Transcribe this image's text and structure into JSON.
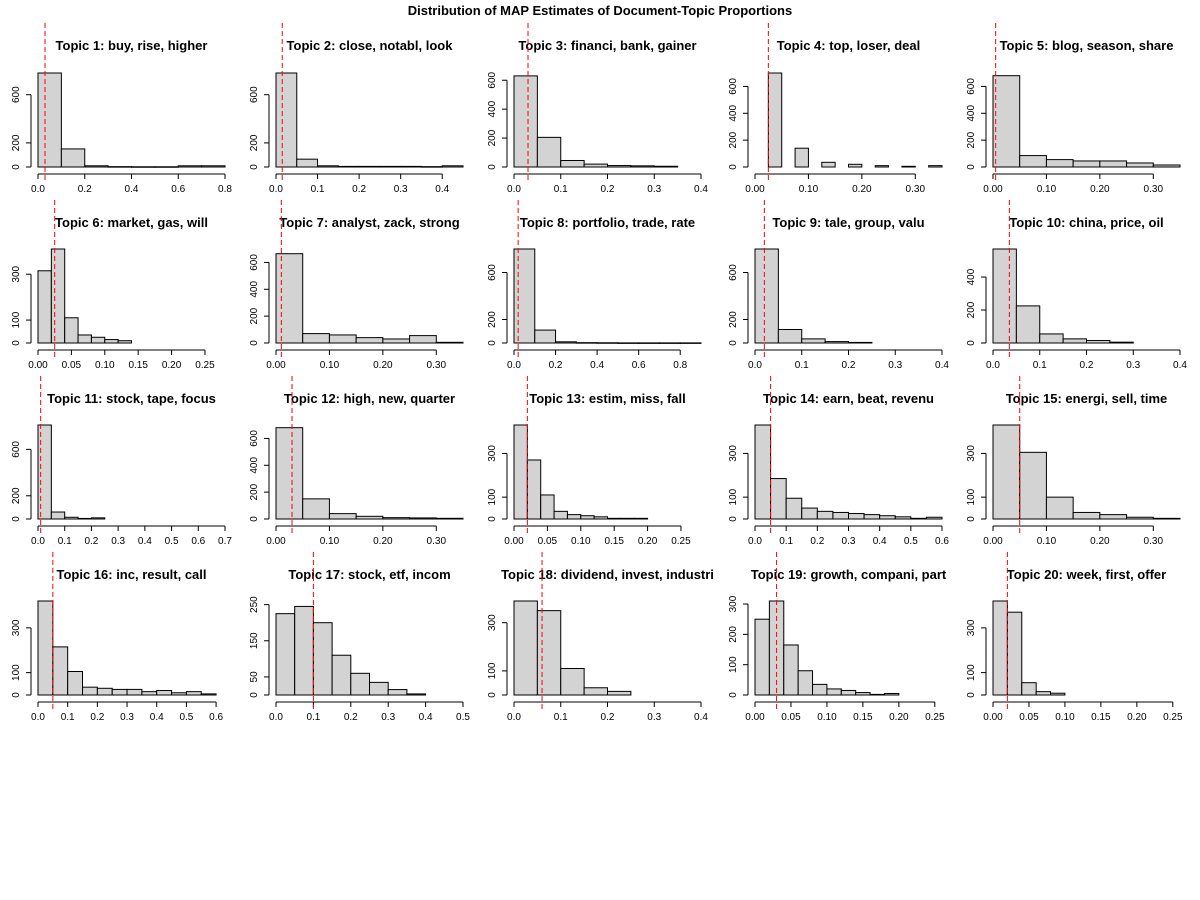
{
  "figure": {
    "title": "Distribution of MAP Estimates of Document-Topic Proportions"
  },
  "colors": {
    "bar_fill": "#d3d3d3",
    "bar_stroke": "#000000",
    "mean_line": "#ff0000"
  },
  "chart_data": [
    {
      "type": "bar",
      "title": "Topic 1: buy, rise, higher",
      "bin_edges": [
        0,
        0.1,
        0.2,
        0.3,
        0.4,
        0.5,
        0.6,
        0.7,
        0.8
      ],
      "counts": [
        780,
        150,
        10,
        3,
        2,
        2,
        10,
        10
      ],
      "xlim": [
        0,
        0.8
      ],
      "xticks": [
        0,
        0.2,
        0.4,
        0.6,
        0.8
      ],
      "xtick_labels": [
        "0.0",
        "0.2",
        "0.4",
        "0.6",
        "0.8"
      ],
      "ylim": [
        0,
        780
      ],
      "yticks": [
        0,
        200,
        600
      ],
      "mean": 0.03
    },
    {
      "type": "bar",
      "title": "Topic 2: close, notabl, look",
      "bin_edges": [
        0,
        0.05,
        0.1,
        0.15,
        0.2,
        0.25,
        0.3,
        0.35,
        0.4,
        0.45
      ],
      "counts": [
        780,
        65,
        10,
        5,
        5,
        5,
        5,
        3,
        10
      ],
      "xlim": [
        0,
        0.45
      ],
      "xticks": [
        0,
        0.1,
        0.2,
        0.3,
        0.4
      ],
      "xtick_labels": [
        "0.0",
        "0.1",
        "0.2",
        "0.3",
        "0.4"
      ],
      "ylim": [
        0,
        780
      ],
      "yticks": [
        0,
        200,
        600
      ],
      "mean": 0.015
    },
    {
      "type": "bar",
      "title": "Topic 3: financi, bank, gainer",
      "bin_edges": [
        0,
        0.05,
        0.1,
        0.15,
        0.2,
        0.25,
        0.3,
        0.35
      ],
      "counts": [
        630,
        205,
        45,
        20,
        10,
        8,
        5
      ],
      "xlim": [
        0,
        0.4
      ],
      "xticks": [
        0,
        0.1,
        0.2,
        0.3,
        0.4
      ],
      "xtick_labels": [
        "0.0",
        "0.1",
        "0.2",
        "0.3",
        "0.4"
      ],
      "ylim": [
        0,
        650
      ],
      "yticks": [
        0,
        200,
        400,
        600
      ],
      "mean": 0.03
    },
    {
      "type": "bar",
      "title": "Topic 4: top, loser, deal",
      "bin_edges": [
        0,
        0.025,
        0.05,
        0.075,
        0.1,
        0.125,
        0.15,
        0.175,
        0.2,
        0.225,
        0.25,
        0.275,
        0.3,
        0.325,
        0.35
      ],
      "counts": [
        0,
        700,
        0,
        140,
        0,
        35,
        0,
        20,
        0,
        10,
        0,
        5,
        0,
        10
      ],
      "xlim": [
        0,
        0.35
      ],
      "xticks": [
        0,
        0.1,
        0.2,
        0.3
      ],
      "xtick_labels": [
        "0.00",
        "0.10",
        "0.20",
        "0.30"
      ],
      "ylim": [
        0,
        700
      ],
      "yticks": [
        0,
        200,
        400,
        600
      ],
      "mean": 0.025
    },
    {
      "type": "bar",
      "title": "Topic 5: blog, season, share",
      "bin_edges": [
        0,
        0.05,
        0.1,
        0.15,
        0.2,
        0.25,
        0.3,
        0.35
      ],
      "counts": [
        680,
        85,
        55,
        45,
        45,
        30,
        15
      ],
      "xlim": [
        0,
        0.35
      ],
      "xticks": [
        0,
        0.1,
        0.2,
        0.3
      ],
      "xtick_labels": [
        "0.00",
        "0.10",
        "0.20",
        "0.30"
      ],
      "ylim": [
        0,
        700
      ],
      "yticks": [
        0,
        200,
        400,
        600
      ],
      "mean": 0.005
    },
    {
      "type": "bar",
      "title": "Topic 6: market, gas, will",
      "bin_edges": [
        0,
        0.02,
        0.04,
        0.06,
        0.08,
        0.1,
        0.12,
        0.14
      ],
      "counts": [
        315,
        410,
        110,
        35,
        25,
        15,
        10
      ],
      "xlim": [
        0,
        0.28
      ],
      "xticks": [
        0,
        0.05,
        0.1,
        0.15,
        0.2,
        0.25
      ],
      "xtick_labels": [
        "0.00",
        "0.05",
        "0.10",
        "0.15",
        "0.20",
        "0.25"
      ],
      "ylim": [
        0,
        410
      ],
      "yticks": [
        0,
        100,
        300
      ],
      "mean": 0.025
    },
    {
      "type": "bar",
      "title": "Topic 7: analyst, zack, strong",
      "bin_edges": [
        0,
        0.05,
        0.1,
        0.15,
        0.2,
        0.25,
        0.3,
        0.35
      ],
      "counts": [
        665,
        70,
        60,
        40,
        30,
        55,
        5
      ],
      "xlim": [
        0,
        0.35
      ],
      "xticks": [
        0,
        0.1,
        0.2,
        0.3
      ],
      "xtick_labels": [
        "0.00",
        "0.10",
        "0.20",
        "0.30"
      ],
      "ylim": [
        0,
        700
      ],
      "yticks": [
        0,
        200,
        400,
        600
      ],
      "mean": 0.01
    },
    {
      "type": "bar",
      "title": "Topic 8: portfolio, trade, rate",
      "bin_edges": [
        0,
        0.1,
        0.2,
        0.3,
        0.4,
        0.5,
        0.6,
        0.7,
        0.8,
        0.9
      ],
      "counts": [
        800,
        110,
        10,
        3,
        2,
        1,
        1,
        1,
        1
      ],
      "xlim": [
        0,
        0.9
      ],
      "xticks": [
        0,
        0.2,
        0.4,
        0.6,
        0.8
      ],
      "xtick_labels": [
        "0.0",
        "0.2",
        "0.4",
        "0.6",
        "0.8"
      ],
      "ylim": [
        0,
        800
      ],
      "yticks": [
        0,
        200,
        600
      ],
      "mean": 0.02
    },
    {
      "type": "bar",
      "title": "Topic 9: tale, group, valu",
      "bin_edges": [
        0,
        0.05,
        0.1,
        0.15,
        0.2,
        0.25
      ],
      "counts": [
        800,
        115,
        35,
        12,
        5
      ],
      "xlim": [
        0,
        0.4
      ],
      "xticks": [
        0,
        0.1,
        0.2,
        0.3,
        0.4
      ],
      "xtick_labels": [
        "0.0",
        "0.1",
        "0.2",
        "0.3",
        "0.4"
      ],
      "ylim": [
        0,
        800
      ],
      "yticks": [
        0,
        200,
        600
      ],
      "mean": 0.02
    },
    {
      "type": "bar",
      "title": "Topic 10: china, price, oil",
      "bin_edges": [
        0,
        0.05,
        0.1,
        0.15,
        0.2,
        0.25,
        0.3
      ],
      "counts": [
        570,
        225,
        55,
        25,
        15,
        5
      ],
      "xlim": [
        0,
        0.4
      ],
      "xticks": [
        0,
        0.1,
        0.2,
        0.3,
        0.4
      ],
      "xtick_labels": [
        "0.0",
        "0.1",
        "0.2",
        "0.3",
        "0.4"
      ],
      "ylim": [
        0,
        570
      ],
      "yticks": [
        0,
        200,
        400
      ],
      "mean": 0.035
    },
    {
      "type": "bar",
      "title": "Topic 11: stock, tape, focus",
      "bin_edges": [
        0,
        0.05,
        0.1,
        0.15,
        0.2,
        0.25
      ],
      "counts": [
        810,
        60,
        15,
        5,
        10
      ],
      "xlim": [
        0,
        0.7
      ],
      "xticks": [
        0,
        0.1,
        0.2,
        0.3,
        0.4,
        0.5,
        0.6,
        0.7
      ],
      "xtick_labels": [
        "0.0",
        "0.1",
        "0.2",
        "0.3",
        "0.4",
        "0.5",
        "0.6",
        "0.7"
      ],
      "ylim": [
        0,
        810
      ],
      "yticks": [
        0,
        200,
        600
      ],
      "mean": 0.01
    },
    {
      "type": "bar",
      "title": "Topic 12: high, new, quarter",
      "bin_edges": [
        0,
        0.05,
        0.1,
        0.15,
        0.2,
        0.25,
        0.3,
        0.35
      ],
      "counts": [
        680,
        150,
        40,
        20,
        10,
        8,
        5
      ],
      "xlim": [
        0,
        0.35
      ],
      "xticks": [
        0,
        0.1,
        0.2,
        0.3
      ],
      "xtick_labels": [
        "0.00",
        "0.10",
        "0.20",
        "0.30"
      ],
      "ylim": [
        0,
        700
      ],
      "yticks": [
        0,
        200,
        400,
        600
      ],
      "mean": 0.03
    },
    {
      "type": "bar",
      "title": "Topic 13: estim, miss, fall",
      "bin_edges": [
        0,
        0.02,
        0.04,
        0.06,
        0.08,
        0.1,
        0.12,
        0.14,
        0.16,
        0.18,
        0.2
      ],
      "counts": [
        430,
        270,
        110,
        35,
        20,
        15,
        10,
        3,
        3,
        3
      ],
      "xlim": [
        0,
        0.28
      ],
      "xticks": [
        0,
        0.05,
        0.1,
        0.15,
        0.2,
        0.25
      ],
      "xtick_labels": [
        "0.00",
        "0.05",
        "0.10",
        "0.15",
        "0.20",
        "0.25"
      ],
      "ylim": [
        0,
        430
      ],
      "yticks": [
        0,
        100,
        300
      ],
      "mean": 0.02
    },
    {
      "type": "bar",
      "title": "Topic 14: earn, beat, revenu",
      "bin_edges": [
        0,
        0.05,
        0.1,
        0.15,
        0.2,
        0.25,
        0.3,
        0.35,
        0.4,
        0.45,
        0.5,
        0.55,
        0.6
      ],
      "counts": [
        430,
        185,
        95,
        50,
        35,
        30,
        25,
        20,
        15,
        10,
        3,
        8
      ],
      "xlim": [
        0,
        0.6
      ],
      "xticks": [
        0,
        0.1,
        0.2,
        0.3,
        0.4,
        0.5,
        0.6
      ],
      "xtick_labels": [
        "0.0",
        "0.1",
        "0.2",
        "0.3",
        "0.4",
        "0.5",
        "0.6"
      ],
      "ylim": [
        0,
        430
      ],
      "yticks": [
        0,
        100,
        300
      ],
      "mean": 0.05
    },
    {
      "type": "bar",
      "title": "Topic 15: energi, sell, time",
      "bin_edges": [
        0,
        0.05,
        0.1,
        0.15,
        0.2,
        0.25,
        0.3,
        0.35
      ],
      "counts": [
        430,
        305,
        100,
        30,
        20,
        8,
        3
      ],
      "xlim": [
        0,
        0.35
      ],
      "xticks": [
        0,
        0.1,
        0.2,
        0.3
      ],
      "xtick_labels": [
        "0.00",
        "0.10",
        "0.20",
        "0.30"
      ],
      "ylim": [
        0,
        430
      ],
      "yticks": [
        0,
        100,
        300
      ],
      "mean": 0.05
    },
    {
      "type": "bar",
      "title": "Topic 16: inc, result, call",
      "bin_edges": [
        0,
        0.05,
        0.1,
        0.15,
        0.2,
        0.25,
        0.3,
        0.35,
        0.4,
        0.45,
        0.5,
        0.55,
        0.6
      ],
      "counts": [
        420,
        215,
        105,
        35,
        30,
        25,
        25,
        15,
        20,
        10,
        15,
        5
      ],
      "xlim": [
        0,
        0.63
      ],
      "xticks": [
        0,
        0.1,
        0.2,
        0.3,
        0.4,
        0.5,
        0.6
      ],
      "xtick_labels": [
        "0.0",
        "0.1",
        "0.2",
        "0.3",
        "0.4",
        "0.5",
        "0.6"
      ],
      "ylim": [
        0,
        420
      ],
      "yticks": [
        0,
        100,
        300
      ],
      "mean": 0.05
    },
    {
      "type": "bar",
      "title": "Topic 17: stock, etf, incom",
      "bin_edges": [
        0,
        0.05,
        0.1,
        0.15,
        0.2,
        0.25,
        0.3,
        0.35,
        0.4
      ],
      "counts": [
        225,
        245,
        200,
        110,
        60,
        35,
        15,
        3
      ],
      "xlim": [
        0,
        0.5
      ],
      "xticks": [
        0,
        0.1,
        0.2,
        0.3,
        0.4,
        0.5
      ],
      "xtick_labels": [
        "0.0",
        "0.1",
        "0.2",
        "0.3",
        "0.4",
        "0.5"
      ],
      "ylim": [
        0,
        260
      ],
      "yticks": [
        0,
        50,
        150,
        250
      ],
      "mean": 0.1
    },
    {
      "type": "bar",
      "title": "Topic 18: dividend, invest, industri",
      "bin_edges": [
        0,
        0.05,
        0.1,
        0.15,
        0.2,
        0.25
      ],
      "counts": [
        390,
        350,
        110,
        30,
        15
      ],
      "xlim": [
        0,
        0.4
      ],
      "xticks": [
        0,
        0.1,
        0.2,
        0.3,
        0.4
      ],
      "xtick_labels": [
        "0.0",
        "0.1",
        "0.2",
        "0.3",
        "0.4"
      ],
      "ylim": [
        0,
        390
      ],
      "yticks": [
        0,
        100,
        300
      ],
      "mean": 0.06
    },
    {
      "type": "bar",
      "title": "Topic 19: growth, compani, part",
      "bin_edges": [
        0,
        0.02,
        0.04,
        0.06,
        0.08,
        0.1,
        0.12,
        0.14,
        0.16,
        0.18,
        0.2
      ],
      "counts": [
        250,
        310,
        165,
        80,
        35,
        20,
        15,
        8,
        2,
        5
      ],
      "xlim": [
        0,
        0.26
      ],
      "xticks": [
        0,
        0.05,
        0.1,
        0.15,
        0.2,
        0.25
      ],
      "xtick_labels": [
        "0.00",
        "0.05",
        "0.10",
        "0.15",
        "0.20",
        "0.25"
      ],
      "ylim": [
        0,
        310
      ],
      "yticks": [
        0,
        100,
        200,
        300
      ],
      "mean": 0.03
    },
    {
      "type": "bar",
      "title": "Topic 20: week, first, offer",
      "bin_edges": [
        0,
        0.02,
        0.04,
        0.06,
        0.08,
        0.1
      ],
      "counts": [
        420,
        370,
        55,
        15,
        8
      ],
      "xlim": [
        0,
        0.26
      ],
      "xticks": [
        0,
        0.05,
        0.1,
        0.15,
        0.2,
        0.25
      ],
      "xtick_labels": [
        "0.00",
        "0.05",
        "0.10",
        "0.15",
        "0.20",
        "0.25"
      ],
      "ylim": [
        0,
        420
      ],
      "yticks": [
        0,
        100,
        300
      ],
      "mean": 0.02
    }
  ]
}
